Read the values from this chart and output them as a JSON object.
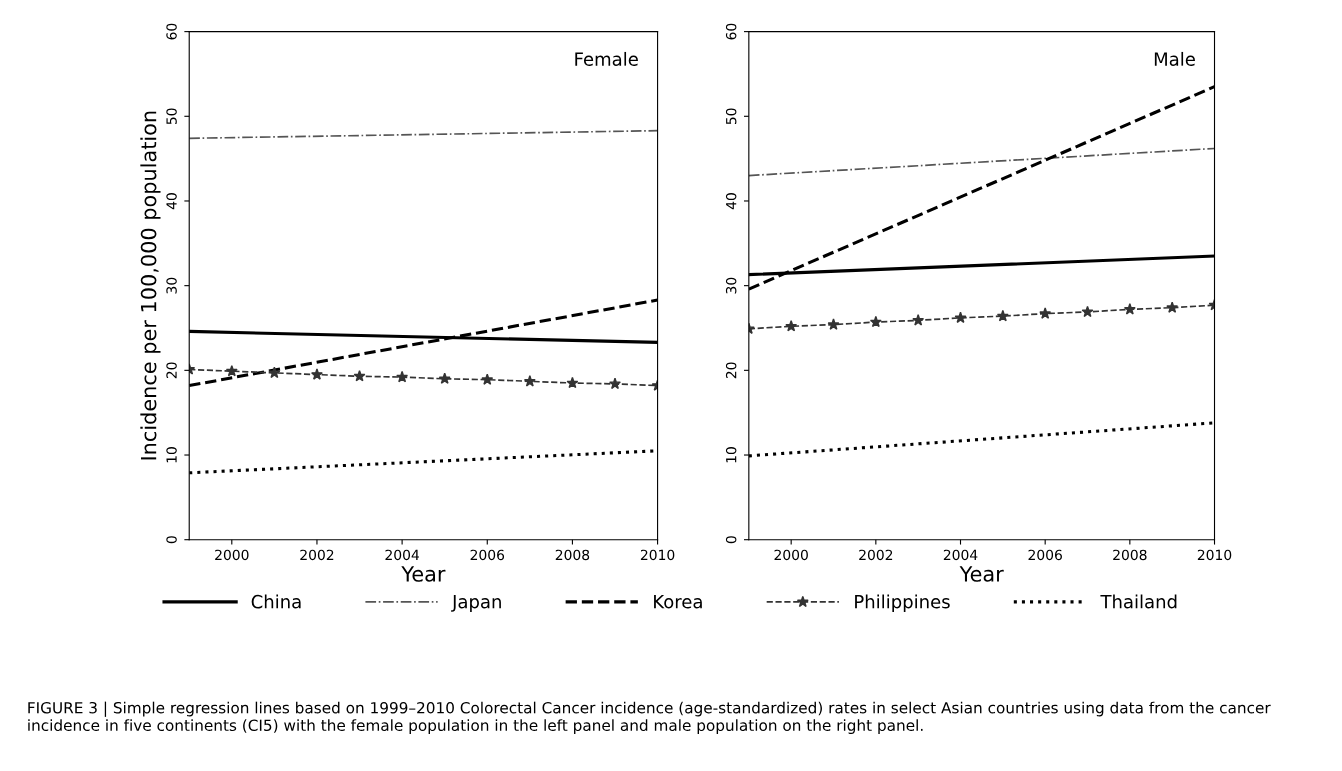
{
  "chart_data": [
    {
      "type": "line",
      "annotations": [
        "Female",
        "FIGURE 3 | Simple regression lines based on 1999–2010 Colorectal Cancer incidence (age-standardized) rates in select Asian countries using data from the cancer incidence in five continents (CI5) with the female population in the left panel and male population on the right panel."
      ],
      "xlabel": "Year",
      "ylabel": "Incidence per 100,000 population",
      "xlim": [
        1999,
        2010
      ],
      "xticks": [
        2000,
        2002,
        2004,
        2006,
        2008,
        2010
      ],
      "ylim": [
        0,
        60
      ],
      "yticks": [
        0,
        10,
        20,
        30,
        40,
        50,
        60
      ],
      "legend": "bottom",
      "grid": false,
      "series": [
        {
          "name": "China",
          "color": "#000000",
          "line_style": "solid",
          "marker": "none",
          "x": [
            1999,
            2010
          ],
          "values": [
            24.6,
            23.3
          ]
        },
        {
          "name": "Japan",
          "color": "#555555",
          "line_style": "dashdot",
          "marker": "none",
          "x": [
            1999,
            2010
          ],
          "values": [
            47.4,
            48.3
          ]
        },
        {
          "name": "Korea",
          "color": "#000000",
          "line_style": "dashed",
          "marker": "none",
          "x": [
            1999,
            2010
          ],
          "values": [
            18.2,
            28.3
          ]
        },
        {
          "name": "Philippines",
          "color": "#333333",
          "line_style": "dashed",
          "marker": "star",
          "x": [
            1999,
            2000,
            2001,
            2002,
            2003,
            2004,
            2005,
            2006,
            2007,
            2008,
            2009,
            2010
          ],
          "values": [
            20.1,
            19.9,
            19.7,
            19.5,
            19.3,
            19.2,
            19.0,
            18.9,
            18.7,
            18.5,
            18.4,
            18.2
          ]
        },
        {
          "name": "Thailand",
          "color": "#000000",
          "line_style": "dotted",
          "marker": "none",
          "x": [
            1999,
            2010
          ],
          "values": [
            7.9,
            10.5
          ]
        }
      ]
    },
    {
      "type": "line",
      "annotations": [
        "Male"
      ],
      "xlabel": "Year",
      "xlim": [
        1999,
        2010
      ],
      "xticks": [
        2000,
        2002,
        2004,
        2006,
        2008,
        2010
      ],
      "ylim": [
        0,
        60
      ],
      "yticks": [
        0,
        10,
        20,
        30,
        40,
        50,
        60
      ],
      "grid": false,
      "series": [
        {
          "color": "#000000",
          "line_style": "solid",
          "marker": "none",
          "x": [
            1999,
            2010
          ],
          "values": [
            31.3,
            33.5
          ]
        },
        {
          "color": "#555555",
          "line_style": "dashdot",
          "marker": "none",
          "x": [
            1999,
            2010
          ],
          "values": [
            43.0,
            46.2
          ]
        },
        {
          "color": "#000000",
          "line_style": "dashed",
          "marker": "none",
          "x": [
            1999,
            2010
          ],
          "values": [
            29.6,
            53.5
          ]
        },
        {
          "color": "#333333",
          "line_style": "dashed",
          "marker": "star",
          "x": [
            1999,
            2000,
            2001,
            2002,
            2003,
            2004,
            2005,
            2006,
            2007,
            2008,
            2009,
            2010
          ],
          "values": [
            24.9,
            25.2,
            25.4,
            25.7,
            25.9,
            26.2,
            26.4,
            26.7,
            26.9,
            27.2,
            27.4,
            27.7
          ]
        },
        {
          "color": "#000000",
          "line_style": "dotted",
          "marker": "none",
          "x": [
            1999,
            2010
          ],
          "values": [
            9.9,
            13.8
          ]
        }
      ]
    }
  ]
}
